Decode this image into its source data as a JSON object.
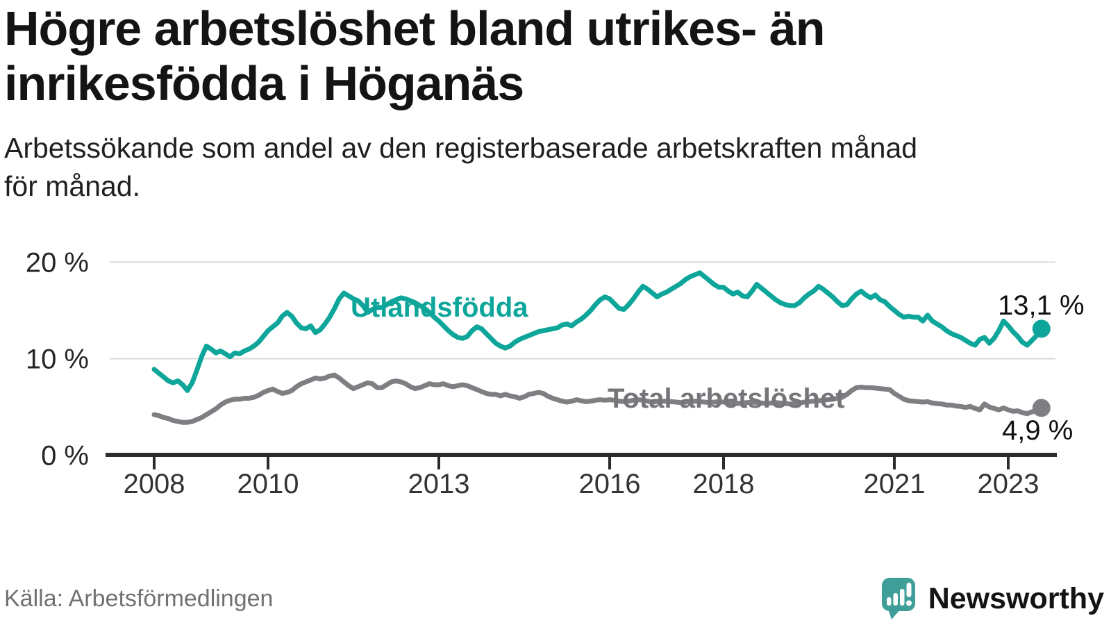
{
  "header": {
    "title_line1": "Högre arbetslöshet bland utrikes- än",
    "title_line2": "inrikesfödda i Höganäs",
    "subtitle_line1": "Arbetssökande som andel av den registerbaserade arbetskraften månad",
    "subtitle_line2": "för månad."
  },
  "footer": {
    "source": "Källa: Arbetsförmedlingen",
    "brand_name": "Newsworthy",
    "brand_color": "#3f9e98"
  },
  "chart_data": {
    "type": "line",
    "x_start": "2008-01",
    "x_freq": "monthly",
    "x_tick_labels": [
      "2008",
      "2010",
      "2013",
      "2016",
      "2018",
      "2021",
      "2023"
    ],
    "x_tick_years": [
      2008,
      2010,
      2013,
      2016,
      2018,
      2021,
      2023
    ],
    "y_ticks": [
      {
        "value": 0,
        "label": "0 %"
      },
      {
        "value": 10,
        "label": "10 %"
      },
      {
        "value": 20,
        "label": "20 %"
      }
    ],
    "ylim": [
      0,
      21.5
    ],
    "grid": "horizontal-at-10-and-20",
    "legend": "inline-labels",
    "axis_color": "#2b2b2b",
    "grid_color": "#d9d9d9",
    "series": [
      {
        "name": "Utlandsfödda",
        "color": "#0ea69a",
        "end_label": "13,1 %",
        "end_value": 13.1,
        "values": [
          8.9,
          8.5,
          8.1,
          7.7,
          7.5,
          7.7,
          7.3,
          6.7,
          7.5,
          8.8,
          10.2,
          11.3,
          11.0,
          10.6,
          10.8,
          10.5,
          10.2,
          10.6,
          10.5,
          10.8,
          11.0,
          11.3,
          11.7,
          12.3,
          12.9,
          13.3,
          13.7,
          14.4,
          14.8,
          14.4,
          13.7,
          13.2,
          13.1,
          13.4,
          12.7,
          13.0,
          13.6,
          14.3,
          15.2,
          16.2,
          16.8,
          16.5,
          16.2,
          16.0,
          15.5,
          14.8,
          15.1,
          15.3,
          15.3,
          15.6,
          15.9,
          16.1,
          16.3,
          16.2,
          16.0,
          15.8,
          15.5,
          15.2,
          14.8,
          14.3,
          13.9,
          13.4,
          12.9,
          12.5,
          12.2,
          12.1,
          12.3,
          12.9,
          13.3,
          13.1,
          12.6,
          12.1,
          11.6,
          11.3,
          11.1,
          11.3,
          11.7,
          12.0,
          12.2,
          12.4,
          12.6,
          12.8,
          12.9,
          13.0,
          13.1,
          13.2,
          13.5,
          13.6,
          13.4,
          13.8,
          14.1,
          14.5,
          15.0,
          15.6,
          16.1,
          16.4,
          16.2,
          15.7,
          15.2,
          15.1,
          15.6,
          16.2,
          16.9,
          17.5,
          17.2,
          16.8,
          16.4,
          16.7,
          16.9,
          17.2,
          17.5,
          17.8,
          18.2,
          18.5,
          18.7,
          18.9,
          18.5,
          18.1,
          17.7,
          17.4,
          17.4,
          17.0,
          16.7,
          16.9,
          16.5,
          16.4,
          17.0,
          17.7,
          17.3,
          16.9,
          16.5,
          16.1,
          15.8,
          15.6,
          15.5,
          15.5,
          15.8,
          16.3,
          16.7,
          17.0,
          17.5,
          17.2,
          16.8,
          16.4,
          15.9,
          15.5,
          15.6,
          16.2,
          16.7,
          17.0,
          16.6,
          16.3,
          16.6,
          16.1,
          15.9,
          15.4,
          15.0,
          14.6,
          14.3,
          14.4,
          14.3,
          14.3,
          13.9,
          14.5,
          13.9,
          13.6,
          13.3,
          12.9,
          12.6,
          12.4,
          12.2,
          11.9,
          11.6,
          11.4,
          12.0,
          12.2,
          11.6,
          12.1,
          12.9,
          13.9,
          13.4,
          12.8,
          12.3,
          11.7,
          11.4,
          11.9,
          12.4,
          13.1
        ]
      },
      {
        "name": "Total arbetslöshet",
        "color": "#7f7f83",
        "end_label": "4,9 %",
        "end_value": 4.9,
        "values": [
          4.2,
          4.1,
          3.9,
          3.8,
          3.6,
          3.5,
          3.4,
          3.4,
          3.5,
          3.7,
          3.9,
          4.2,
          4.5,
          4.8,
          5.2,
          5.5,
          5.7,
          5.8,
          5.8,
          5.9,
          5.9,
          6.0,
          6.2,
          6.5,
          6.7,
          6.85,
          6.6,
          6.4,
          6.5,
          6.7,
          7.1,
          7.4,
          7.6,
          7.8,
          8.0,
          7.9,
          8.0,
          8.2,
          8.3,
          8.0,
          7.6,
          7.2,
          6.9,
          7.1,
          7.3,
          7.5,
          7.4,
          7.0,
          7.0,
          7.3,
          7.6,
          7.7,
          7.6,
          7.4,
          7.1,
          6.9,
          7.0,
          7.2,
          7.4,
          7.3,
          7.3,
          7.4,
          7.2,
          7.1,
          7.2,
          7.3,
          7.2,
          7.0,
          6.8,
          6.6,
          6.4,
          6.3,
          6.3,
          6.15,
          6.3,
          6.15,
          6.05,
          5.9,
          6.05,
          6.3,
          6.4,
          6.5,
          6.4,
          6.1,
          5.9,
          5.75,
          5.6,
          5.5,
          5.6,
          5.75,
          5.65,
          5.55,
          5.6,
          5.7,
          5.75,
          5.7,
          5.75,
          5.7,
          5.6,
          5.55,
          5.6,
          5.7,
          5.75,
          5.7,
          5.6,
          5.5,
          5.55,
          5.6,
          5.6,
          5.55,
          5.5,
          5.45,
          5.5,
          5.55,
          5.6,
          5.55,
          5.5,
          5.45,
          5.5,
          5.55,
          5.5,
          5.45,
          5.4,
          5.35,
          5.4,
          5.45,
          5.5,
          5.45,
          5.4,
          5.35,
          5.4,
          5.45,
          5.4,
          5.35,
          5.3,
          5.35,
          5.4,
          5.5,
          5.55,
          5.6,
          5.65,
          5.7,
          5.75,
          5.8,
          5.9,
          6.0,
          6.3,
          6.7,
          7.0,
          7.05,
          7.0,
          7.0,
          6.95,
          6.9,
          6.85,
          6.8,
          6.4,
          6.1,
          5.8,
          5.65,
          5.6,
          5.55,
          5.5,
          5.55,
          5.4,
          5.35,
          5.3,
          5.2,
          5.2,
          5.1,
          5.05,
          4.95,
          5.05,
          4.85,
          4.7,
          5.3,
          5.0,
          4.85,
          4.7,
          4.9,
          4.7,
          4.55,
          4.6,
          4.4,
          4.3,
          4.5,
          4.6,
          4.9
        ]
      }
    ]
  }
}
